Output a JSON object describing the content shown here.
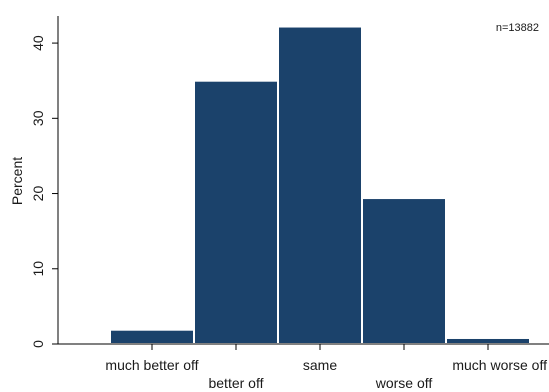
{
  "chart_data": {
    "type": "bar",
    "categories": [
      "much better off",
      "better off",
      "same",
      "worse off",
      "much worse off"
    ],
    "values": [
      1.9,
      35.0,
      42.2,
      19.4,
      0.8
    ],
    "ylabel": "Percent",
    "xlabel": "",
    "ylim": [
      0,
      43.6
    ],
    "yticks": [
      0,
      10,
      20,
      30,
      40
    ],
    "annotation": "n=13882",
    "bar_color": "#1b426b",
    "bar_edge_color": "#ffffff",
    "grid": false,
    "legend": "none"
  }
}
